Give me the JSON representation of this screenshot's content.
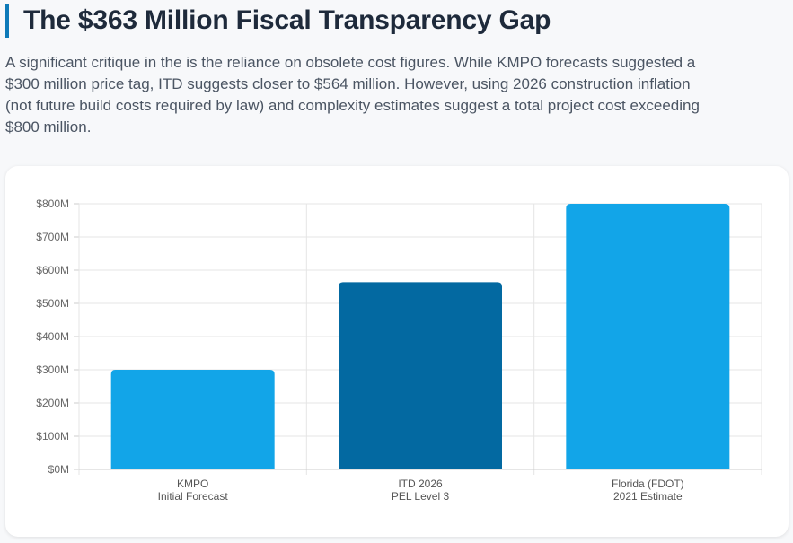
{
  "header": {
    "title": "The $363 Million Fiscal Transparency Gap",
    "intro": "A significant critique in the is the reliance on obsolete cost figures. While KMPO forecasts suggested a $300 million price tag, ITD suggests closer to $564 million. However, using 2026 construction inflation (not future build costs required by law) and complexity estimates suggest a total project cost exceeding $800 million."
  },
  "chart_data": {
    "type": "bar",
    "categories": [
      [
        "KMPO",
        "Initial Forecast"
      ],
      [
        "ITD 2026",
        "PEL Level 3"
      ],
      [
        "Florida (FDOT)",
        "2021 Estimate"
      ]
    ],
    "values": [
      300,
      564,
      800
    ],
    "colors": [
      "#12a5e8",
      "#0369a1",
      "#12a5e8"
    ],
    "ylim": [
      0,
      800
    ],
    "yticks": [
      0,
      100,
      200,
      300,
      400,
      500,
      600,
      700,
      800
    ],
    "ytick_labels": [
      "$0M",
      "$100M",
      "$200M",
      "$300M",
      "$400M",
      "$500M",
      "$600M",
      "$700M",
      "$800M"
    ],
    "grid": true,
    "title": "",
    "xlabel": "",
    "ylabel": ""
  }
}
